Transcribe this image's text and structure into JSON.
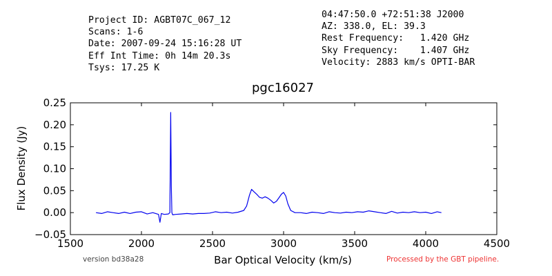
{
  "header_left": [
    "Project ID: AGBT07C_067_12",
    "Scans: 1-6",
    "Date: 2007-09-24 15:16:28 UT",
    "Eff Int Time: 0h 14m 20.3s",
    "Tsys: 17.25 K"
  ],
  "header_right": [
    "04:47:50.0 +72:51:38 J2000",
    "AZ: 338.0, EL: 39.3",
    "Rest Frequency:   1.420 GHz",
    "Sky Frequency:    1.407 GHz",
    "Velocity: 2883 km/s OPTI-BAR"
  ],
  "footer": {
    "version": "version bd38a28",
    "pipeline": "Processed by the GBT pipeline."
  },
  "colors": {
    "line": "#0000ee",
    "pipeline_text": "#ee3333",
    "axes": "#000000"
  },
  "chart_data": {
    "type": "line",
    "title": "pgc16027",
    "xlabel": "Bar Optical Velocity (km/s)",
    "ylabel": "Flux Density (Jy)",
    "xlim": [
      1500,
      4500
    ],
    "ylim": [
      -0.05,
      0.25
    ],
    "xticks": [
      1500,
      2000,
      2500,
      3000,
      3500,
      4000,
      4500
    ],
    "yticks": [
      -0.05,
      0.0,
      0.05,
      0.1,
      0.15,
      0.2,
      0.25
    ],
    "xtick_labels": [
      "1500",
      "2000",
      "2500",
      "3000",
      "3500",
      "4000",
      "4500"
    ],
    "ytick_labels": [
      "−0.05",
      "0.00",
      "0.05",
      "0.10",
      "0.15",
      "0.20",
      "0.25"
    ],
    "grid": false,
    "legend": "none",
    "series": [
      {
        "x": [
          1680,
          1720,
          1760,
          1800,
          1840,
          1880,
          1920,
          1960,
          2000,
          2040,
          2080,
          2120,
          2130,
          2140,
          2160,
          2190,
          2200,
          2206,
          2210,
          2214,
          2220,
          2240,
          2280,
          2320,
          2360,
          2400,
          2440,
          2480,
          2520,
          2560,
          2600,
          2640,
          2680,
          2720,
          2740,
          2760,
          2775,
          2790,
          2810,
          2830,
          2850,
          2870,
          2890,
          2910,
          2930,
          2950,
          2970,
          2985,
          3000,
          3015,
          3030,
          3050,
          3080,
          3120,
          3160,
          3200,
          3240,
          3280,
          3320,
          3360,
          3400,
          3440,
          3480,
          3520,
          3560,
          3600,
          3640,
          3680,
          3720,
          3760,
          3800,
          3840,
          3880,
          3920,
          3960,
          4000,
          4040,
          4080,
          4110
        ],
        "y": [
          0.0,
          -0.002,
          0.002,
          0.0,
          -0.002,
          0.001,
          -0.002,
          0.001,
          0.002,
          -0.003,
          0.0,
          -0.004,
          -0.022,
          -0.002,
          -0.004,
          -0.003,
          0.0,
          0.228,
          0.06,
          0.0,
          -0.005,
          -0.004,
          -0.003,
          -0.002,
          -0.003,
          -0.002,
          -0.002,
          -0.001,
          0.002,
          0.0,
          0.001,
          -0.001,
          0.001,
          0.005,
          0.015,
          0.04,
          0.053,
          0.048,
          0.042,
          0.035,
          0.033,
          0.036,
          0.033,
          0.028,
          0.022,
          0.026,
          0.035,
          0.042,
          0.046,
          0.038,
          0.02,
          0.005,
          0.0,
          0.0,
          -0.002,
          0.001,
          0.0,
          -0.002,
          0.002,
          0.0,
          -0.001,
          0.001,
          0.0,
          0.002,
          0.001,
          0.004,
          0.002,
          0.0,
          -0.002,
          0.003,
          -0.001,
          0.001,
          0.0,
          0.002,
          0.0,
          0.001,
          -0.002,
          0.002,
          0.0
        ]
      }
    ]
  }
}
